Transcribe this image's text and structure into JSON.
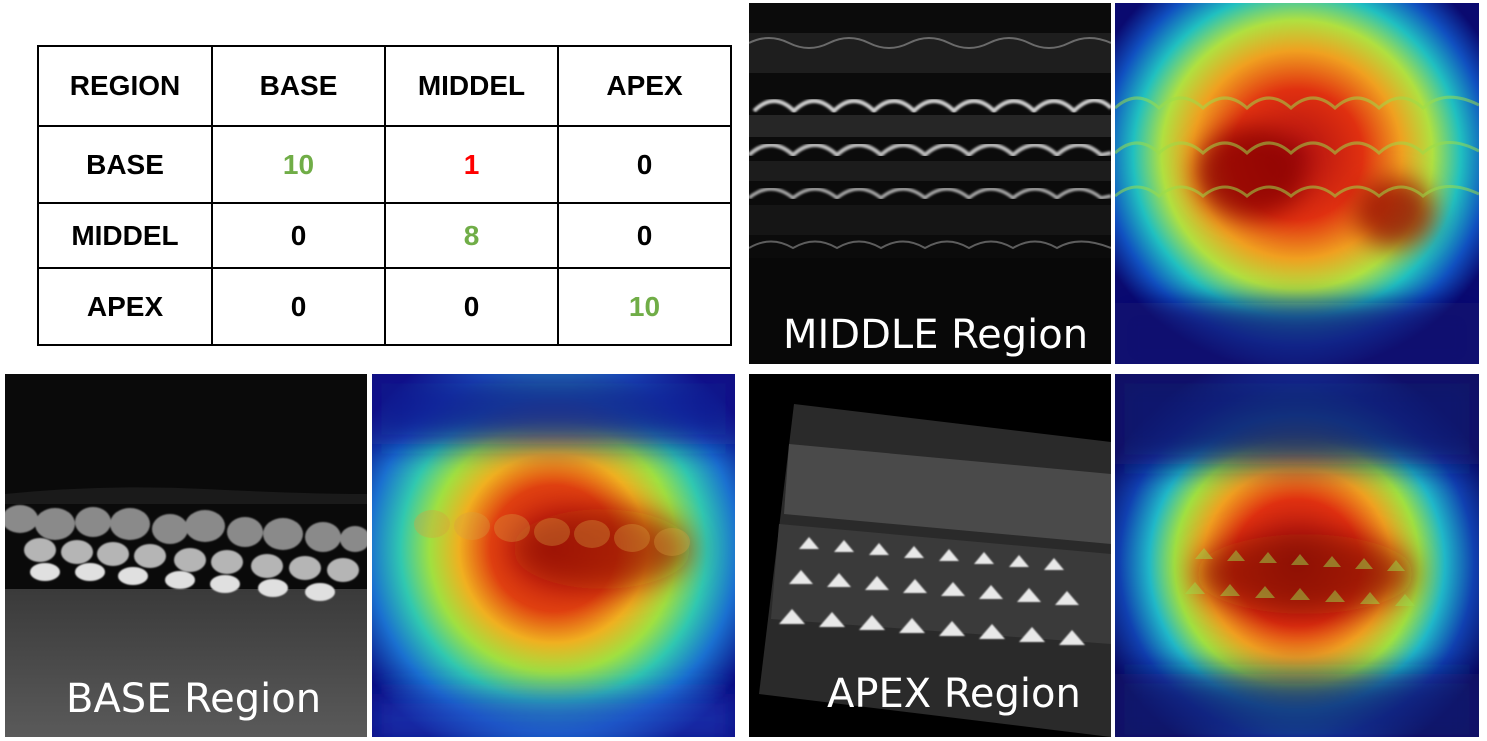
{
  "table": {
    "headers": [
      "REGION",
      "BASE",
      "MIDDEL",
      "APEX"
    ],
    "rows": [
      {
        "label": "BASE",
        "cells": [
          "10",
          "1",
          "0"
        ]
      },
      {
        "label": "MIDDEL",
        "cells": [
          "0",
          "8",
          "0"
        ]
      },
      {
        "label": "APEX",
        "cells": [
          "0",
          "0",
          "10"
        ]
      }
    ],
    "colors": {
      "correct": "#70ad47",
      "error": "#ff0000",
      "neutral": "#000000"
    }
  },
  "panels": {
    "middle": {
      "label": "MIDDLE Region"
    },
    "base": {
      "label": "BASE Region"
    },
    "apex": {
      "label": "APEX Region"
    }
  }
}
